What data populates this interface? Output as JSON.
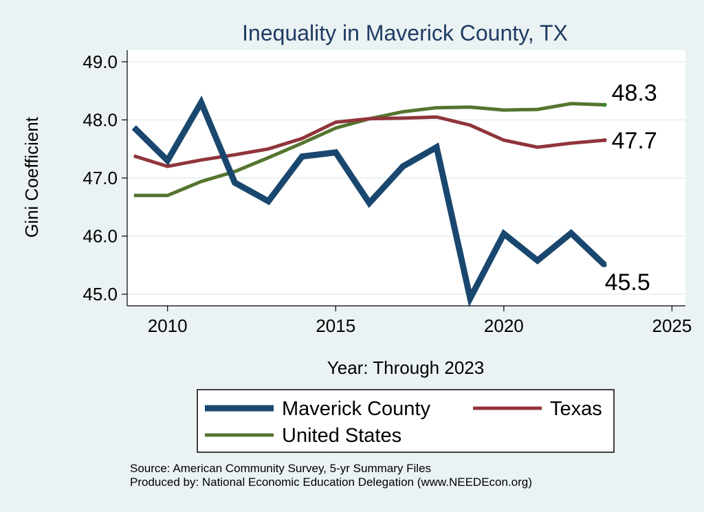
{
  "chart_data": {
    "type": "line",
    "title": "Inequality in Maverick County, TX",
    "xlabel": "Year: Through 2023",
    "ylabel": "Gini Coefficient",
    "xlim": [
      2008.8,
      2025.4
    ],
    "ylim": [
      44.8,
      49.2
    ],
    "x_ticks": [
      2010,
      2015,
      2020,
      2025
    ],
    "x_tick_labels": [
      "2010",
      "2015",
      "2020",
      "2025"
    ],
    "y_ticks": [
      45.0,
      46.0,
      47.0,
      48.0,
      49.0
    ],
    "y_tick_labels": [
      "45.0",
      "46.0",
      "47.0",
      "48.0",
      "49.0"
    ],
    "grid": true,
    "legend_position": "bottom",
    "x": [
      2009,
      2010,
      2011,
      2012,
      2013,
      2014,
      2015,
      2016,
      2017,
      2018,
      2019,
      2020,
      2021,
      2022,
      2023
    ],
    "series": [
      {
        "name": "Maverick County",
        "color": "#1a476f",
        "values": [
          47.87,
          47.3,
          48.3,
          46.92,
          46.6,
          47.37,
          47.44,
          46.57,
          47.2,
          47.53,
          44.93,
          46.04,
          45.58,
          46.05,
          45.5
        ],
        "end_label": "45.5"
      },
      {
        "name": "Texas",
        "color": "#90353b",
        "values": [
          47.38,
          47.2,
          47.31,
          47.4,
          47.5,
          47.68,
          47.96,
          48.02,
          48.03,
          48.05,
          47.91,
          47.65,
          47.53,
          47.6,
          47.65
        ],
        "end_label": "47.7"
      },
      {
        "name": "United States",
        "color": "#55752f",
        "values": [
          46.7,
          46.7,
          46.94,
          47.11,
          47.35,
          47.6,
          47.86,
          48.02,
          48.14,
          48.21,
          48.22,
          48.17,
          48.18,
          48.28,
          48.26
        ],
        "end_label": "48.3"
      }
    ]
  },
  "source": {
    "line1": "Source: American Community Survey, 5-yr Summary Files",
    "line2": "Produced by: National Economic Education Delegation (www.NEEDEcon.org)"
  }
}
